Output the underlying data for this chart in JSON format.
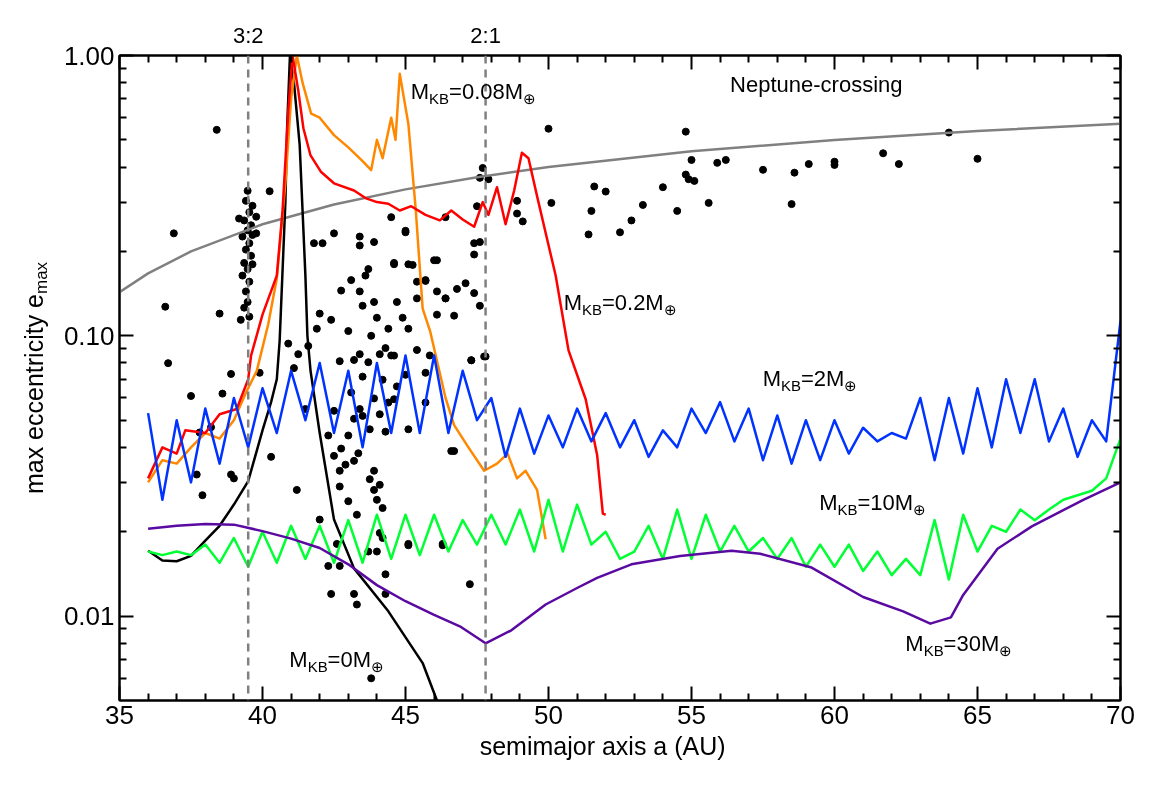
{
  "chart_data": {
    "type": "line",
    "xlabel": "semimajor axis a      (AU)",
    "ylabel": "max eccentricity e$_{max}$",
    "log": "y",
    "xlim": [
      35,
      70
    ],
    "ylim": [
      0.005,
      1
    ],
    "xticks": [
      35,
      {
        "value": 36,
        "label": null
      },
      {
        "value": 37,
        "label": null
      },
      {
        "value": 38,
        "label": null
      },
      {
        "value": 39,
        "label": null
      },
      40,
      {
        "value": 41,
        "label": null
      },
      {
        "value": 42,
        "label": null
      },
      {
        "value": 43,
        "label": null
      },
      {
        "value": 44,
        "label": null
      },
      45,
      {
        "value": 46,
        "label": null
      },
      {
        "value": 47,
        "label": null
      },
      {
        "value": 48,
        "label": null
      },
      {
        "value": 49,
        "label": null
      },
      50,
      {
        "value": 51,
        "label": null
      },
      {
        "value": 52,
        "label": null
      },
      {
        "value": 53,
        "label": null
      },
      {
        "value": 54,
        "label": null
      },
      55,
      {
        "value": 56,
        "label": null
      },
      {
        "value": 57,
        "label": null
      },
      {
        "value": 58,
        "label": null
      },
      {
        "value": 59,
        "label": null
      },
      60,
      {
        "value": 61,
        "label": null
      },
      {
        "value": 62,
        "label": null
      },
      {
        "value": 63,
        "label": null
      },
      {
        "value": 64,
        "label": null
      },
      65,
      {
        "value": 66,
        "label": null
      },
      {
        "value": 67,
        "label": null
      },
      {
        "value": 68,
        "label": null
      },
      {
        "value": 69,
        "label": null
      },
      70
    ],
    "yticks": [
      {
        "value": 0.006,
        "label": null
      },
      {
        "value": 0.007,
        "label": null
      },
      {
        "value": 0.008,
        "label": null
      },
      {
        "value": 0.009,
        "label": null
      },
      {
        "value": 0.01,
        "label": "0.01"
      },
      {
        "value": 0.02,
        "label": null
      },
      {
        "value": 0.03,
        "label": null
      },
      {
        "value": 0.04,
        "label": null
      },
      {
        "value": 0.05,
        "label": null
      },
      {
        "value": 0.06,
        "label": null
      },
      {
        "value": 0.07,
        "label": null
      },
      {
        "value": 0.08,
        "label": null
      },
      {
        "value": 0.09,
        "label": null
      },
      {
        "value": 0.1,
        "label": "0.10"
      },
      {
        "value": 0.2,
        "label": null
      },
      {
        "value": 0.3,
        "label": null
      },
      {
        "value": 0.4,
        "label": null
      },
      {
        "value": 0.5,
        "label": null
      },
      {
        "value": 0.6,
        "label": null
      },
      {
        "value": 0.7,
        "label": null
      },
      {
        "value": 0.8,
        "label": null
      },
      {
        "value": 0.9,
        "label": null
      },
      {
        "value": 1,
        "label": "1.00"
      }
    ],
    "ref_lines": [
      {
        "axis": "x",
        "value": 39.5,
        "color": "#808080",
        "line_style": "dashed"
      },
      {
        "axis": "x",
        "value": 47.8,
        "color": "#808080",
        "line_style": "dashed"
      }
    ],
    "series": [
      {
        "type": "scatter",
        "marker": "circle",
        "color": "#000000",
        "x": [
          39.48,
          39.42,
          39.65,
          39.54,
          39.78,
          39.36,
          39.6,
          39.18,
          39.48,
          39.65,
          39.3,
          39.54,
          39.78,
          39.42,
          39.6,
          39.36,
          39.65,
          39.48,
          39.3,
          39.54,
          39.42,
          39.48,
          39.36,
          39.54,
          39.24,
          38.4,
          36.6,
          36.9,
          36.7,
          38.5,
          40.25,
          41.8,
          42.1,
          42.5,
          43.4,
          43.4,
          43.9,
          44.5,
          45.0,
          43.7,
          43.6,
          43.1,
          42.75,
          43.4,
          44.6,
          45.1,
          46.0,
          45.7,
          45.4,
          44.7,
          43.9,
          43.5,
          42.0,
          42.4,
          44.0,
          44.4,
          44.9,
          45.1,
          46.1,
          46.4,
          41.9,
          43.0,
          43.8,
          44.3,
          43.4,
          44.1,
          44.6,
          45.4,
          40.9,
          41.25,
          41.6,
          42.7,
          43.2,
          50.0,
          54.8,
          55.0,
          55.9,
          56.2,
          57.5,
          54.8,
          54.9,
          55.1,
          55.6,
          54.5,
          54.0,
          53.3,
          52.9,
          52.5,
          51.6,
          52.0,
          51.5,
          51.4,
          50.1,
          48.9,
          48.9,
          49.1,
          47.7,
          47.6,
          47.9,
          47.5,
          46.4,
          45.0,
          47.4,
          47.6,
          47.4,
          46.1,
          45.25,
          44.6,
          45.4,
          45.7,
          47.1,
          46.8,
          47.4,
          46.1,
          46.4,
          47.6,
          46.7,
          47.3,
          47.8,
          38.9,
          39.9,
          38.6,
          37.5,
          37.8,
          38.2,
          37.7,
          37.9,
          38.9,
          39.0,
          40.3,
          41.2,
          41.1,
          41.5,
          42.0,
          42.6,
          42.3,
          42.7,
          42.4,
          43.2,
          43.3,
          43.7,
          44.0,
          44.3,
          44.3,
          45.1,
          46.3,
          44.1,
          44.2,
          43.8,
          42.3,
          42.5,
          42.75,
          43.0,
          42.9,
          42.7,
          42.7,
          43.0,
          43.3,
          43.2,
          43.35,
          43.2,
          43.5,
          43.75,
          43.9,
          43.75,
          44.0,
          44.2,
          44.1,
          42.5,
          43.1,
          43.5,
          43.9,
          44.2,
          44.4,
          44.1,
          44.3,
          44.5,
          43.7,
          45.1,
          45.7,
          46.6,
          43.4,
          43.9,
          45.0,
          45.7,
          45.85,
          47.3,
          47.75,
          46.7,
          45.1,
          46.3,
          47.25,
          44.7,
          44.6,
          58.6,
          58.5,
          59.1,
          60.0,
          60.0,
          61.7,
          62.25,
          64.0,
          65.0
        ],
        "values": [
          0.329,
          0.303,
          0.291,
          0.276,
          0.266,
          0.258,
          0.248,
          0.262,
          0.238,
          0.229,
          0.226,
          0.214,
          0.232,
          0.203,
          0.193,
          0.182,
          0.18,
          0.173,
          0.164,
          0.156,
          0.144,
          0.132,
          0.126,
          0.117,
          0.114,
          0.543,
          0.127,
          0.232,
          0.0799,
          0.12,
          0.328,
          0.214,
          0.214,
          0.232,
          0.226,
          0.21,
          0.216,
          0.265,
          0.237,
          0.173,
          0.164,
          0.158,
          0.145,
          0.144,
          0.18,
          0.18,
          0.186,
          0.157,
          0.136,
          0.132,
          0.132,
          0.128,
          0.12,
          0.114,
          0.116,
          0.106,
          0.116,
          0.106,
          0.119,
          0.136,
          0.106,
          0.104,
          0.1,
          0.0904,
          0.086,
          0.086,
          0.085,
          0.089,
          0.0938,
          0.086,
          0.092,
          0.0812,
          0.082,
          0.548,
          0.535,
          0.424,
          0.414,
          0.424,
          0.391,
          0.376,
          0.362,
          0.357,
          0.298,
          0.279,
          0.339,
          0.293,
          0.258,
          0.234,
          0.341,
          0.327,
          0.279,
          0.23,
          0.298,
          0.303,
          0.273,
          0.256,
          0.397,
          0.366,
          0.362,
          0.29,
          0.265,
          0.234,
          0.214,
          0.216,
          0.195,
          0.186,
          0.179,
          0.182,
          0.156,
          0.158,
          0.154,
          0.147,
          0.142,
          0.144,
          0.136,
          0.128,
          0.118,
          0.0818,
          0.0844,
          0.0731,
          0.0738,
          0.0622,
          0.061,
          0.0452,
          0.0472,
          0.032,
          0.027,
          0.032,
          0.031,
          0.037,
          0.0282,
          0.0767,
          0.0548,
          0.0221,
          0.0181,
          0.0151,
          0.0151,
          0.012,
          0.012,
          0.011,
          0.017,
          0.017,
          0.0141,
          0.012,
          0.0181,
          0.0181,
          0.0198,
          0.019,
          0.006,
          0.0441,
          0.0373,
          0.0396,
          0.0441,
          0.0347,
          0.033,
          0.029,
          0.0257,
          0.023,
          0.0358,
          0.0381,
          0.0506,
          0.0518,
          0.0464,
          0.033,
          0.0308,
          0.026,
          0.0243,
          0.0294,
          0.054,
          0.0628,
          0.0715,
          0.0598,
          0.0697,
          0.0578,
          0.0525,
          0.0455,
          0.0851,
          0.0805,
          0.0464,
          0.0578,
          0.0388,
          0.0548,
          0.0282,
          0.0726,
          0.0738,
          0.0851,
          0.0818,
          0.0844,
          0.0388,
          0.0179,
          0.0179,
          0.013,
          0.066,
          0.0594,
          0.382,
          0.295,
          0.41,
          0.418,
          0.407,
          0.448,
          0.41,
          0.531,
          0.428
        ]
      },
      {
        "color": "#808080",
        "x": [
          35,
          36,
          37.5,
          40,
          42.5,
          45,
          47.5,
          50,
          55,
          60,
          65,
          70
        ],
        "values": [
          0.143,
          0.167,
          0.2,
          0.25,
          0.294,
          0.333,
          0.368,
          0.4,
          0.455,
          0.5,
          0.538,
          0.571
        ]
      },
      {
        "color": "#000000",
        "x": [
          36.0,
          36.5,
          37.0,
          37.5,
          38.0,
          38.5,
          39.0,
          39.5,
          40.0,
          40.3,
          40.5,
          40.6,
          40.8,
          40.86,
          40.96,
          41.1,
          41.3,
          41.5,
          41.57,
          41.68,
          42.0,
          42.5,
          43.2,
          44.4,
          45.6,
          46.1
        ],
        "values": [
          0.0171,
          0.0158,
          0.0157,
          0.0164,
          0.0186,
          0.021,
          0.025,
          0.0303,
          0.046,
          0.058,
          0.07,
          0.096,
          0.3,
          0.55,
          1.0,
          0.8,
          0.48,
          0.164,
          0.1,
          0.075,
          0.045,
          0.0221,
          0.0148,
          0.0104,
          0.0068,
          0.005
        ]
      },
      {
        "color": "#ff8800",
        "x": [
          36,
          36.5,
          37,
          37.5,
          38,
          38.5,
          39,
          39.4,
          39.8,
          40.2,
          40.5,
          40.8,
          41.0,
          41.2,
          41.4,
          41.7,
          42.0,
          42.5,
          43.0,
          43.5,
          43.8,
          44.0,
          44.2,
          44.5,
          44.65,
          44.8,
          45.1,
          45.36,
          45.6,
          45.86,
          46.07,
          46.4,
          46.7,
          47.2,
          47.75,
          48.2,
          48.57,
          48.9,
          49.2,
          49.6,
          49.9
        ],
        "values": [
          0.03,
          0.036,
          0.035,
          0.04,
          0.045,
          0.043,
          0.05,
          0.062,
          0.075,
          0.11,
          0.16,
          0.35,
          0.7,
          1.0,
          0.8,
          0.62,
          0.6,
          0.52,
          0.47,
          0.42,
          0.39,
          0.5,
          0.43,
          0.6,
          0.5,
          0.86,
          0.57,
          0.28,
          0.125,
          0.104,
          0.084,
          0.06,
          0.048,
          0.04,
          0.033,
          0.035,
          0.038,
          0.031,
          0.033,
          0.0282,
          0.0188
        ]
      },
      {
        "color": "#ff0000",
        "x": [
          36,
          36.5,
          37,
          37.3,
          38,
          38.5,
          39.1,
          39.5,
          39.6,
          40.0,
          40.5,
          40.7,
          40.9,
          41.05,
          41.25,
          41.43,
          41.68,
          42.04,
          42.5,
          43.2,
          43.6,
          44.0,
          44.4,
          44.8,
          45.2,
          45.7,
          46.2,
          46.6,
          47.0,
          47.4,
          47.7,
          47.9,
          48.2,
          48.5,
          48.8,
          49.07,
          49.3,
          49.6,
          50.25,
          50.6,
          50.7,
          51.3,
          51.7,
          51.9,
          52.0
        ],
        "values": [
          0.031,
          0.04,
          0.038,
          0.046,
          0.045,
          0.0525,
          0.0548,
          0.07,
          0.085,
          0.119,
          0.164,
          0.279,
          0.63,
          1.0,
          0.75,
          0.55,
          0.44,
          0.385,
          0.35,
          0.33,
          0.31,
          0.3,
          0.296,
          0.28,
          0.29,
          0.27,
          0.258,
          0.28,
          0.26,
          0.245,
          0.3,
          0.27,
          0.339,
          0.25,
          0.33,
          0.45,
          0.43,
          0.315,
          0.164,
          0.1017,
          0.0887,
          0.0594,
          0.0376,
          0.0232,
          0.023
        ]
      },
      {
        "color": "#0033ff",
        "x": [
          36.0,
          36.5,
          37.0,
          37.5,
          38.0,
          38.5,
          39.0,
          39.5,
          40.0,
          40.5,
          41.0,
          41.5,
          42.0,
          42.5,
          43.0,
          43.5,
          44.0,
          44.5,
          45.0,
          45.5,
          46.0,
          46.5,
          47.0,
          47.5,
          48.0,
          48.5,
          49.0,
          49.5,
          50.0,
          50.5,
          51.0,
          51.5,
          52.0,
          52.5,
          53.0,
          53.5,
          54.0,
          54.5,
          55.0,
          55.5,
          56.0,
          56.5,
          57.0,
          57.5,
          58.0,
          58.5,
          59.0,
          59.5,
          60.0,
          60.5,
          61.0,
          61.5,
          62.0,
          62.5,
          63.0,
          63.5,
          64.0,
          64.5,
          65.0,
          65.5,
          66.0,
          66.5,
          67.0,
          67.5,
          68.0,
          68.5,
          69.0,
          69.5,
          70.0
        ],
        "values": [
          0.053,
          0.026,
          0.05,
          0.03,
          0.055,
          0.035,
          0.06,
          0.04,
          0.065,
          0.045,
          0.075,
          0.05,
          0.08,
          0.045,
          0.075,
          0.04,
          0.08,
          0.045,
          0.085,
          0.045,
          0.085,
          0.045,
          0.075,
          0.05,
          0.06,
          0.037,
          0.055,
          0.038,
          0.052,
          0.04,
          0.055,
          0.042,
          0.053,
          0.04,
          0.05,
          0.037,
          0.046,
          0.04,
          0.055,
          0.045,
          0.058,
          0.042,
          0.055,
          0.036,
          0.052,
          0.035,
          0.05,
          0.036,
          0.05,
          0.038,
          0.047,
          0.042,
          0.045,
          0.043,
          0.06,
          0.036,
          0.06,
          0.038,
          0.065,
          0.04,
          0.07,
          0.045,
          0.07,
          0.042,
          0.055,
          0.037,
          0.05,
          0.042,
          0.113
        ]
      },
      {
        "color": "#00ff33",
        "x": [
          36.0,
          36.5,
          37.0,
          37.5,
          38.0,
          38.5,
          39.0,
          39.5,
          40.0,
          40.5,
          41.0,
          41.5,
          42.0,
          42.5,
          43.0,
          43.5,
          44.0,
          44.5,
          45.0,
          45.5,
          46.0,
          46.5,
          47.0,
          47.5,
          48.0,
          48.5,
          49.0,
          49.5,
          50.0,
          50.5,
          51.0,
          51.5,
          52.0,
          52.5,
          53.0,
          53.5,
          54.0,
          54.5,
          55.0,
          55.5,
          56.0,
          56.5,
          57.0,
          57.5,
          58.0,
          58.5,
          59.0,
          59.5,
          60.0,
          60.5,
          61.0,
          61.5,
          62.0,
          62.5,
          63.0,
          63.5,
          64.0,
          64.5,
          65.0,
          65.5,
          66.0,
          66.5,
          67.0,
          67.5,
          68.0,
          68.5,
          69.0,
          69.5,
          70.0
        ],
        "values": [
          0.017,
          0.0165,
          0.017,
          0.0165,
          0.018,
          0.0155,
          0.019,
          0.015,
          0.02,
          0.0155,
          0.021,
          0.016,
          0.021,
          0.0155,
          0.022,
          0.0155,
          0.023,
          0.016,
          0.023,
          0.0165,
          0.023,
          0.017,
          0.022,
          0.018,
          0.023,
          0.018,
          0.024,
          0.017,
          0.026,
          0.017,
          0.025,
          0.018,
          0.02,
          0.016,
          0.017,
          0.021,
          0.016,
          0.024,
          0.016,
          0.023,
          0.017,
          0.021,
          0.017,
          0.019,
          0.016,
          0.019,
          0.015,
          0.018,
          0.015,
          0.018,
          0.0145,
          0.017,
          0.014,
          0.016,
          0.014,
          0.022,
          0.0135,
          0.023,
          0.017,
          0.021,
          0.02,
          0.024,
          0.022,
          0.024,
          0.026,
          0.027,
          0.028,
          0.031,
          0.043
        ]
      },
      {
        "color": "#5a0aa0",
        "x": [
          36,
          37,
          38,
          39,
          40,
          41,
          42,
          43,
          44,
          45,
          46,
          46.9,
          47.8,
          48.7,
          49.9,
          51,
          51.7,
          52.9,
          54.6,
          56.4,
          57.4,
          59.2,
          61,
          62.4,
          63.35,
          64.07,
          64.5,
          65.7,
          66.9,
          68.7,
          70
        ],
        "values": [
          0.0205,
          0.021,
          0.0213,
          0.0212,
          0.0201,
          0.0189,
          0.0175,
          0.0153,
          0.0129,
          0.0113,
          0.0101,
          0.0092,
          0.008,
          0.0089,
          0.011,
          0.0126,
          0.0137,
          0.0153,
          0.0164,
          0.0171,
          0.0167,
          0.0149,
          0.0117,
          0.0104,
          0.0094,
          0.0099,
          0.0119,
          0.0174,
          0.0209,
          0.026,
          0.03
        ]
      }
    ],
    "annotations": [
      {
        "text": "3:2",
        "x": 39.5,
        "y": 1
      },
      {
        "text": "2:1",
        "x": 47.8,
        "y": 1
      },
      {
        "text": "M$_{KB}$=0.08M$_{⊕}$",
        "x": 44.8,
        "y": 0.86
      },
      "Neptune-crossing",
      {
        "text": "M$_{KB}$=0.2M$_{⊕}$",
        "x": 50.25,
        "y": 0.164
      },
      {
        "text": "M$_{KB}$=2M$_{⊕}$",
        "x": 57.0,
        "y": 0.055
      },
      {
        "text": "M$_{KB}$=10M$_{⊕}$",
        "x": 59.5,
        "y": 0.018
      },
      {
        "text": "M$_{KB}$=30M$_{⊕}$",
        "x": 63.35,
        "y": 0.0094
      },
      {
        "text": "M$_{KB}$=0M$_{⊕}$",
        "x": 44.4,
        "y": 0.0104
      }
    ]
  }
}
